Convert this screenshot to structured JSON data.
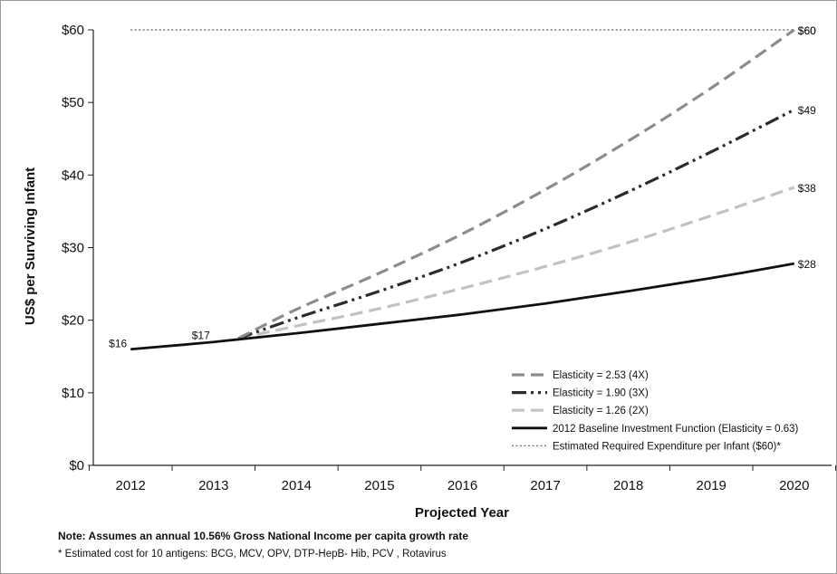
{
  "chart_data": {
    "type": "line",
    "title": "",
    "xlabel": "Projected Year",
    "ylabel": "US$ per Surviving Infant",
    "x": [
      2012,
      2013,
      2014,
      2015,
      2016,
      2017,
      2018,
      2019,
      2020
    ],
    "xlim": [
      2011.55,
      2020.45
    ],
    "ylim": [
      0,
      60
    ],
    "yticks": [
      0,
      10,
      20,
      30,
      40,
      50,
      60
    ],
    "ytick_labels": [
      "$0",
      "$10",
      "$20",
      "$30",
      "$40",
      "$50",
      "$60"
    ],
    "grid": false,
    "legend_position": "bottom-right",
    "series": [
      {
        "key": "e253",
        "name": "Elasticity = 2.53 (4X)",
        "style": "dashed",
        "color": "#8c8c8c",
        "x": [
          2013.3,
          2014,
          2015,
          2016,
          2017,
          2018,
          2019,
          2020
        ],
        "values": [
          17.5,
          21.5,
          26.5,
          31.9,
          38.0,
          44.7,
          52.0,
          60.0
        ],
        "end_label": "$60"
      },
      {
        "key": "e190",
        "name": "Elasticity = 1.90 (3X)",
        "style": "dash-dot-dot",
        "color": "#2b2b2b",
        "x": [
          2013.3,
          2014,
          2015,
          2016,
          2017,
          2018,
          2019,
          2020
        ],
        "values": [
          17.5,
          20.3,
          24.0,
          28.0,
          32.6,
          37.7,
          43.2,
          49.0
        ],
        "end_label": "$49"
      },
      {
        "key": "e126",
        "name": "Elasticity = 1.26 (2X)",
        "style": "dashed",
        "color": "#c2c2c2",
        "x": [
          2013.3,
          2014,
          2015,
          2016,
          2017,
          2018,
          2019,
          2020
        ],
        "values": [
          17.5,
          19.2,
          21.6,
          24.4,
          27.4,
          30.7,
          34.4,
          38.3
        ],
        "end_label": "$38"
      },
      {
        "key": "base",
        "name": "2012 Baseline Investment Function (Elasticity = 0.63)",
        "style": "solid",
        "color": "#111111",
        "x": [
          2012,
          2013,
          2014,
          2015,
          2016,
          2017,
          2018,
          2019,
          2020
        ],
        "values": [
          16.0,
          17.0,
          18.2,
          19.5,
          20.8,
          22.3,
          24.0,
          25.8,
          27.8
        ],
        "start_label": "$16",
        "mid_label": "$17",
        "end_label": "$28"
      },
      {
        "key": "req",
        "name": "Estimated Required Expenditure per Infant ($60)*",
        "style": "dotted",
        "color": "#777777",
        "x": [
          2012,
          2020
        ],
        "values": [
          60,
          60
        ],
        "end_label": "$60"
      }
    ]
  },
  "notes": {
    "line1": "Note: Assumes an annual 10.56% Gross National Income per capita growth rate",
    "line2": "* Estimated cost for 10 antigens: BCG, MCV, OPV, DTP-HepB- Hib, PCV , Rotavirus"
  }
}
